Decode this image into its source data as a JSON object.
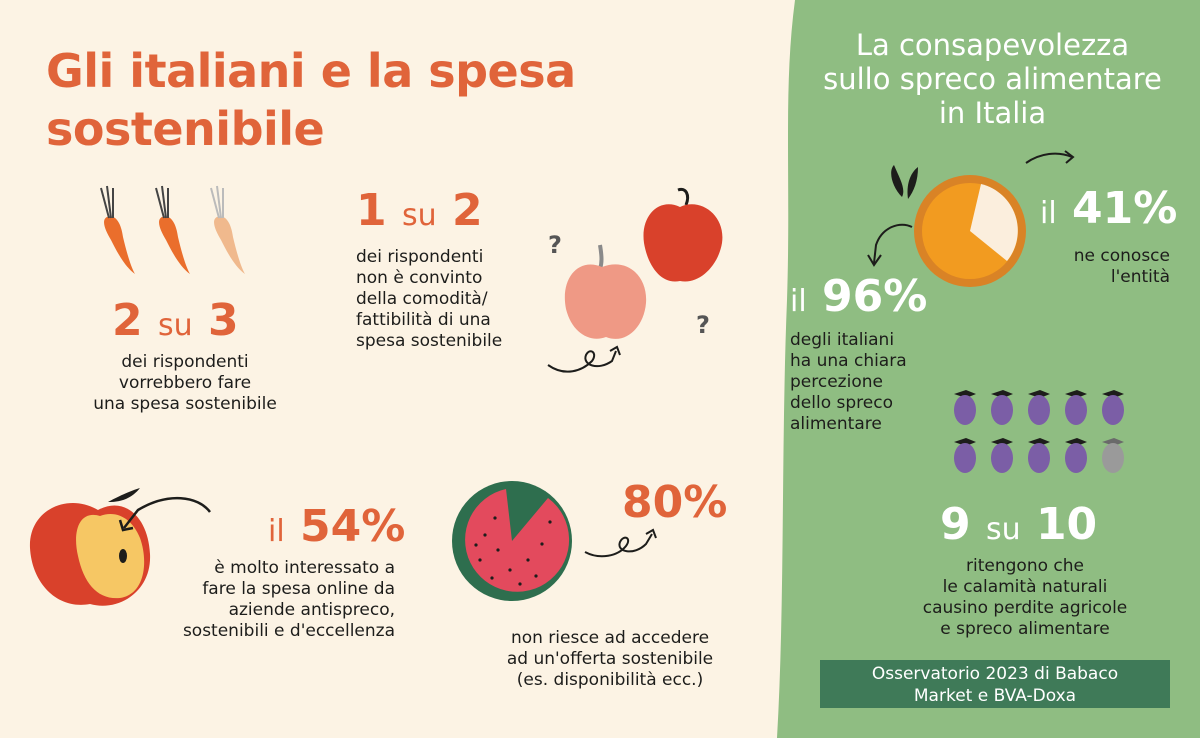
{
  "title": "Gli italiani e la spesa sostenibile",
  "stat1": {
    "a": "2",
    "su": "su",
    "b": "3",
    "text": [
      "dei rispondenti",
      "vorrebbero fare",
      "una spesa sostenibile"
    ]
  },
  "stat2": {
    "a": "1",
    "su": "su",
    "b": "2",
    "text": [
      "dei rispondenti",
      "non è convinto",
      "della comodità/",
      "fattibilità di una",
      "spesa sostenibile"
    ]
  },
  "stat3": {
    "prefix": "il",
    "value": "54%",
    "text": [
      "è molto interessato a",
      "fare la spesa online da",
      "aziende antispreco,",
      "sostenibili e d'eccellenza"
    ]
  },
  "stat4": {
    "value": "80%",
    "text": [
      "non riesce ad accedere",
      "ad un'offerta sostenibile",
      "(es. disponibilità ecc.)"
    ]
  },
  "right": {
    "title": [
      "La consapevolezza",
      "sullo spreco alimentare",
      "in Italia"
    ],
    "stat96": {
      "prefix": "il",
      "value": "96%",
      "text": [
        "degli italiani",
        "ha una chiara",
        "percezione",
        "dello spreco",
        "alimentare"
      ]
    },
    "stat41": {
      "prefix": "il",
      "value": "41%",
      "text": [
        "ne conosce",
        "l'entità"
      ]
    },
    "stat910": {
      "a": "9",
      "su": "su",
      "b": "10",
      "text": [
        "ritengono che",
        "le calamità naturali",
        "causino perdite agricole",
        "e spreco alimentare"
      ]
    },
    "source": [
      "Osservatorio 2023 di Babaco",
      "Market e BVA-Doxa"
    ]
  },
  "colors": {
    "orange": "#e0643a",
    "green": "#8fbd82",
    "dark_green": "#3f7a58",
    "cream": "#fcf3e4"
  }
}
